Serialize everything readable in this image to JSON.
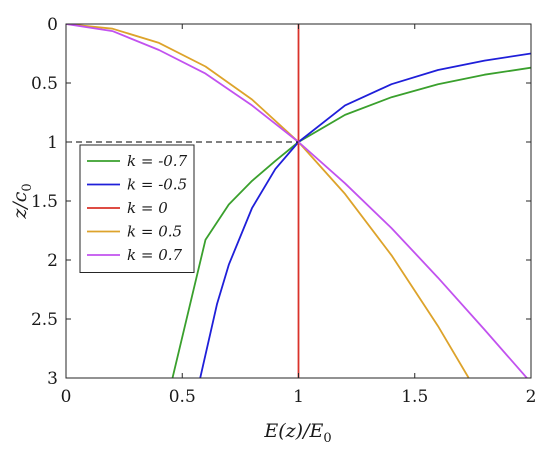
{
  "chart_data": {
    "type": "line",
    "title": "",
    "xlabel": "E(z)/E",
    "xlabel_sub": "0",
    "ylabel": "z/c",
    "ylabel_sub": "0",
    "xlim": [
      0,
      2
    ],
    "ylim": [
      0,
      3
    ],
    "y_reversed": true,
    "grid": false,
    "legend_position": "left-middle",
    "xticks": [
      0,
      0.5,
      1,
      1.5,
      2
    ],
    "xtick_labels": [
      "0",
      "0.5",
      "1",
      "1.5",
      "2"
    ],
    "yticks": [
      0,
      0.5,
      1,
      1.5,
      2,
      2.5,
      3
    ],
    "ytick_labels": [
      "0",
      "0.5",
      "1",
      "1.5",
      "2",
      "2.5",
      "3"
    ],
    "reference_line": {
      "style": "dashed",
      "x": [
        0,
        1
      ],
      "y": [
        1,
        1
      ],
      "color": "#000000"
    },
    "series": [
      {
        "name": "k = -0.7",
        "color": "#3aa02d",
        "x": [
          0.458,
          0.6,
          0.7,
          0.8,
          0.9,
          1.0,
          1.2,
          1.4,
          1.6,
          1.8,
          2.0
        ],
        "y": [
          3.0,
          1.828,
          1.53,
          1.33,
          1.16,
          1.0,
          0.77,
          0.62,
          0.51,
          0.43,
          0.37
        ]
      },
      {
        "name": "k = -0.5",
        "color": "#1f1fd9",
        "x": [
          0.577,
          0.65,
          0.7,
          0.8,
          0.9,
          1.0,
          1.2,
          1.4,
          1.6,
          1.8,
          2.0
        ],
        "y": [
          3.0,
          2.37,
          2.04,
          1.56,
          1.23,
          1.0,
          0.69,
          0.51,
          0.39,
          0.31,
          0.25
        ]
      },
      {
        "name": "k = 0",
        "color": "#d9322a",
        "x": [
          1.0,
          1.0
        ],
        "y": [
          0.0,
          3.0
        ]
      },
      {
        "name": "k = 0.5",
        "color": "#dda32b",
        "x": [
          0.0,
          0.2,
          0.4,
          0.6,
          0.8,
          1.0,
          1.2,
          1.4,
          1.6,
          1.732
        ],
        "y": [
          0.0,
          0.04,
          0.16,
          0.36,
          0.64,
          1.0,
          1.44,
          1.96,
          2.56,
          3.0
        ]
      },
      {
        "name": "k = 0.7",
        "color": "#c252ef",
        "x": [
          0.0,
          0.2,
          0.4,
          0.6,
          0.8,
          1.0,
          1.2,
          1.4,
          1.6,
          1.8,
          2.0
        ],
        "y": [
          0.0,
          0.06,
          0.22,
          0.42,
          0.69,
          1.0,
          1.35,
          1.73,
          2.15,
          2.59,
          3.04
        ]
      }
    ]
  }
}
